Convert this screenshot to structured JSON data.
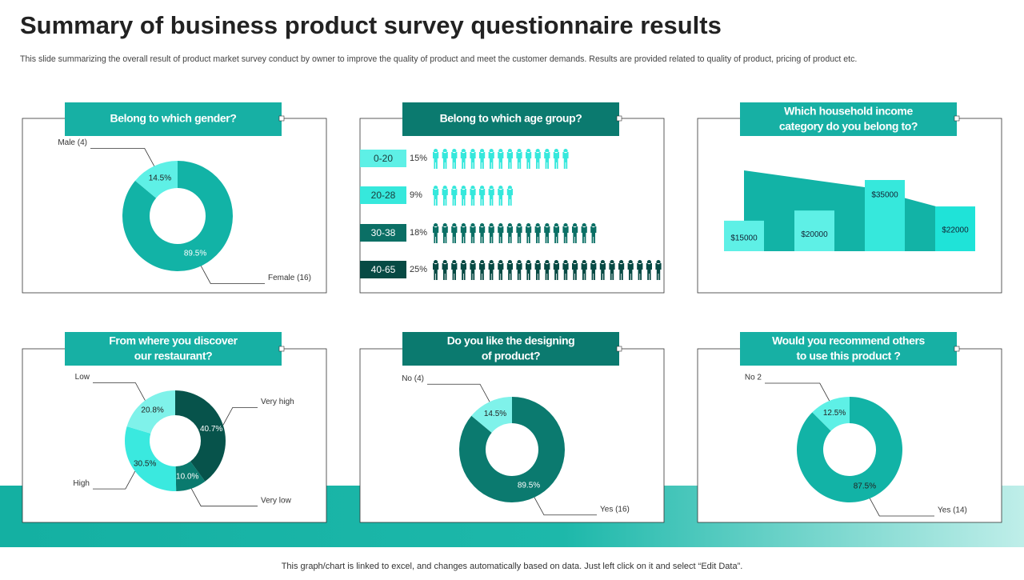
{
  "title": "Summary of business product survey questionnaire results",
  "subtitle": "This slide summarizing the overall result of product market survey conduct by owner to improve the quality of product and meet the customer demands. Results are provided related to  quality of product, pricing of product etc.",
  "footer": "This graph/chart is linked to excel,  and changes automatically based on data. Just left click on it and select “Edit Data”.",
  "chart_data": [
    {
      "type": "donut",
      "title": "Belong to which gender?",
      "categories": [
        "Female  (16)",
        "Male  (4)"
      ],
      "values": [
        89.5,
        14.5
      ],
      "value_labels": [
        "89.5%",
        "14.5%"
      ],
      "colors": [
        "#12b3a6",
        "#5ef0e6"
      ]
    },
    {
      "type": "pictograph",
      "title": "Belong to which age group?",
      "categories": [
        "0-20",
        "20-28",
        "30-38",
        "40-65"
      ],
      "values": [
        15,
        9,
        18,
        25
      ],
      "value_labels": [
        "15%",
        "9%",
        "18%",
        "25%"
      ],
      "colors": [
        "#5ef0e6",
        "#36e8dc",
        "#0b6f65",
        "#074a44"
      ]
    },
    {
      "type": "bar",
      "title": "Which household income\ncategory do you belong to?",
      "categories": [
        null,
        null,
        null,
        null
      ],
      "values": [
        15000,
        20000,
        35000,
        22000
      ],
      "value_labels": [
        "$15000",
        "$20000",
        "$35000",
        "$22000"
      ],
      "colors": [
        "#5ef0e6",
        "#5ef0e6",
        "#36e8dc",
        "#1fe3d8"
      ]
    },
    {
      "type": "donut",
      "title": "From where you discover\nour restaurant?",
      "categories": [
        "Very high",
        "Very low",
        "High",
        "Low"
      ],
      "values": [
        40.7,
        10.0,
        30.5,
        20.8
      ],
      "value_labels": [
        "40.7%",
        "10.0%",
        "30.5%",
        "20.8%"
      ],
      "colors": [
        "#07534b",
        "#0a7a6e",
        "#3ae9df",
        "#7ff2ea"
      ]
    },
    {
      "type": "donut",
      "title": "Do you like the designing\nof product?",
      "categories": [
        "Yes (16)",
        "No (4)"
      ],
      "values": [
        89.5,
        14.5
      ],
      "value_labels": [
        "89.5%",
        "14.5%"
      ],
      "colors": [
        "#0b7a6f",
        "#7ff2ea"
      ]
    },
    {
      "type": "donut",
      "title": "Would you recommend others\nto use this product ?",
      "categories": [
        "Yes (14)",
        "No 2"
      ],
      "values": [
        87.5,
        12.5
      ],
      "value_labels": [
        "87.5%",
        "12.5%"
      ],
      "colors": [
        "#12b3a6",
        "#5ef0e6"
      ]
    }
  ]
}
